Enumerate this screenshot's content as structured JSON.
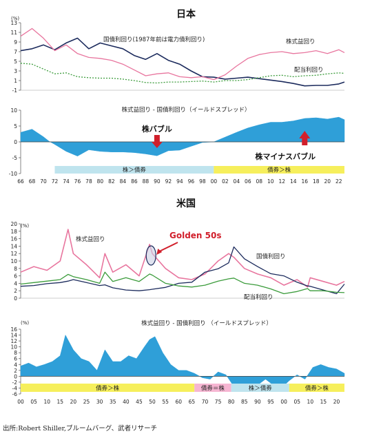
{
  "source_note": "出所:Robert Shiller,ブルームバーグ、武者リサーチ",
  "chart_data": [
    {
      "id": "japan_top",
      "type": "line",
      "title": "日本",
      "unit_label": "(%)",
      "ylim": [
        -1,
        13
      ],
      "yticks": [
        -1,
        1,
        3,
        5,
        7,
        9,
        11,
        13
      ],
      "x": [
        1966,
        1968,
        1970,
        1972,
        1974,
        1976,
        1978,
        1980,
        1982,
        1984,
        1986,
        1988,
        1990,
        1992,
        1994,
        1996,
        1998,
        2000,
        2002,
        2004,
        2006,
        2008,
        2010,
        2012,
        2014,
        2016,
        2018,
        2020,
        2022,
        2023
      ],
      "series": [
        {
          "name": "国債利回り(1987年前は電力債利回り)",
          "color": "#1b2a5c",
          "dash": "",
          "values": [
            7.2,
            7.6,
            8.4,
            7.4,
            8.8,
            9.8,
            7.6,
            8.8,
            8.2,
            7.6,
            6.2,
            5.4,
            6.6,
            5.2,
            4.4,
            3.0,
            1.8,
            1.7,
            1.3,
            1.5,
            1.7,
            1.4,
            1.1,
            0.8,
            0.4,
            -0.1,
            0.0,
            0.0,
            0.3,
            0.7
          ]
        },
        {
          "name": "株式益回り",
          "color": "#e8759e",
          "dash": "",
          "values": [
            10.2,
            11.8,
            9.8,
            7.2,
            8.4,
            6.6,
            5.8,
            5.6,
            5.2,
            4.4,
            3.2,
            2.0,
            2.4,
            2.6,
            1.8,
            1.6,
            1.8,
            1.2,
            2.2,
            4.0,
            5.6,
            6.4,
            6.8,
            7.0,
            6.6,
            6.8,
            7.2,
            6.6,
            7.4,
            6.8
          ]
        },
        {
          "name": "配当利回り",
          "color": "#3a9b3a",
          "dash": "2,2",
          "values": [
            4.6,
            4.4,
            3.4,
            2.4,
            2.6,
            1.8,
            1.6,
            1.5,
            1.5,
            1.3,
            1.0,
            0.6,
            0.5,
            0.7,
            0.7,
            0.8,
            0.9,
            0.7,
            1.0,
            1.0,
            1.2,
            1.6,
            2.0,
            2.1,
            1.8,
            2.0,
            2.1,
            2.4,
            2.6,
            2.5
          ]
        }
      ]
    },
    {
      "id": "japan_spread",
      "type": "area",
      "title": "株式益回り - 国債利回り（イールドスプレッド）",
      "ylim": [
        -10,
        10
      ],
      "yticks": [
        -10,
        -5,
        0,
        5,
        10
      ],
      "xlabels": [
        "66",
        "68",
        "70",
        "72",
        "74",
        "76",
        "78",
        "80",
        "82",
        "84",
        "86",
        "88",
        "90",
        "92",
        "94",
        "96",
        "98",
        "00",
        "02",
        "04",
        "06",
        "08",
        "10",
        "12",
        "14",
        "16",
        "18",
        "20",
        "22"
      ],
      "x": [
        1966,
        1968,
        1970,
        1971,
        1972,
        1974,
        1976,
        1978,
        1980,
        1982,
        1984,
        1986,
        1988,
        1990,
        1992,
        1994,
        1996,
        1998,
        2000,
        2002,
        2004,
        2006,
        2008,
        2010,
        2012,
        2014,
        2016,
        2018,
        2020,
        2022,
        2023
      ],
      "values": [
        3.0,
        4.0,
        1.6,
        0.2,
        -0.8,
        -3.0,
        -4.5,
        -2.5,
        -3.0,
        -3.2,
        -3.2,
        -3.4,
        -3.8,
        -4.4,
        -2.8,
        -2.6,
        -1.4,
        -0.2,
        0.0,
        1.5,
        3.0,
        4.4,
        5.4,
        6.2,
        6.2,
        6.6,
        7.4,
        7.6,
        7.2,
        7.8,
        7.0
      ],
      "color": "#2f9fd8",
      "annotations": [
        {
          "text": "株バブル",
          "x": 1990,
          "arrow": "down"
        },
        {
          "text": "株マイナスバブル",
          "x": 2016,
          "arrow": "up"
        }
      ],
      "regimes": [
        {
          "label": "株＞債券",
          "from": 1972,
          "to": 2000,
          "color": "#bfe4ee"
        },
        {
          "label": "債券＞株",
          "from": 2000,
          "to": 2023,
          "color": "#f6ef5c"
        }
      ]
    },
    {
      "id": "us_top",
      "type": "line",
      "title": "米国",
      "unit_label": "(%)",
      "ylim": [
        0,
        20
      ],
      "yticks": [
        0,
        2,
        4,
        6,
        8,
        10,
        12,
        14,
        16,
        18,
        20
      ],
      "x": [
        1900,
        1905,
        1910,
        1915,
        1918,
        1920,
        1925,
        1930,
        1932,
        1935,
        1940,
        1945,
        1949,
        1950,
        1955,
        1960,
        1965,
        1970,
        1975,
        1979,
        1981,
        1985,
        1990,
        1995,
        2000,
        2005,
        2009,
        2010,
        2015,
        2020,
        2023
      ],
      "series": [
        {
          "name": "株式益回り",
          "color": "#e8759e",
          "dash": "",
          "values": [
            7.0,
            8.5,
            7.5,
            10.0,
            18.5,
            12.0,
            9.0,
            5.5,
            12.0,
            7.0,
            9.0,
            6.0,
            14.5,
            12.0,
            8.0,
            5.5,
            5.0,
            6.5,
            10.0,
            12.0,
            11.0,
            8.0,
            6.5,
            5.5,
            3.5,
            5.0,
            3.0,
            5.5,
            4.5,
            3.5,
            4.5
          ]
        },
        {
          "name": "国債利回り",
          "color": "#1b2a5c",
          "dash": "",
          "values": [
            3.2,
            3.4,
            3.9,
            4.2,
            4.6,
            5.0,
            4.2,
            3.4,
            3.6,
            2.8,
            2.2,
            2.0,
            2.3,
            2.4,
            2.9,
            4.0,
            4.3,
            7.0,
            7.9,
            9.5,
            13.8,
            10.6,
            8.5,
            6.6,
            6.0,
            4.3,
            3.3,
            3.2,
            2.2,
            1.2,
            3.8
          ]
        },
        {
          "name": "配当利回り",
          "color": "#3a9b3a",
          "dash": "",
          "values": [
            3.8,
            4.2,
            4.6,
            5.0,
            6.4,
            5.8,
            5.0,
            4.0,
            7.0,
            4.5,
            5.5,
            4.5,
            6.5,
            6.2,
            4.0,
            3.3,
            3.0,
            3.5,
            4.6,
            5.2,
            5.4,
            4.0,
            3.5,
            2.5,
            1.2,
            1.8,
            2.6,
            2.0,
            2.0,
            1.6,
            1.5
          ]
        }
      ],
      "annotations": [
        {
          "text": "Golden 50s",
          "x": 1949,
          "color": "#d11f2b"
        }
      ]
    },
    {
      "id": "us_spread",
      "type": "area",
      "title": "株式益回り - 国債利回り （イールドスプレッド）",
      "unit_label": "(%)",
      "ylim": [
        -6,
        16
      ],
      "yticks": [
        -6,
        -4,
        -2,
        0,
        2,
        4,
        6,
        8,
        10,
        12,
        14,
        16
      ],
      "xlabels": [
        "00",
        "05",
        "10",
        "15",
        "20",
        "25",
        "30",
        "35",
        "40",
        "45",
        "50",
        "55",
        "60",
        "65",
        "70",
        "75",
        "80",
        "85",
        "90",
        "95",
        "00",
        "05",
        "10",
        "15",
        "20"
      ],
      "x": [
        1900,
        1903,
        1906,
        1909,
        1912,
        1915,
        1917,
        1920,
        1923,
        1926,
        1929,
        1932,
        1935,
        1938,
        1941,
        1944,
        1947,
        1949,
        1951,
        1954,
        1957,
        1960,
        1963,
        1966,
        1969,
        1972,
        1975,
        1978,
        1981,
        1984,
        1987,
        1990,
        1993,
        1996,
        1999,
        2002,
        2005,
        2008,
        2011,
        2014,
        2017,
        2020,
        2023
      ],
      "values": [
        3.5,
        4.5,
        3.2,
        4.0,
        5.0,
        7.0,
        14.0,
        9.0,
        6.0,
        5.0,
        2.0,
        9.0,
        5.0,
        5.0,
        7.0,
        6.0,
        10.0,
        12.5,
        13.5,
        8.0,
        4.0,
        2.0,
        2.0,
        1.0,
        -0.5,
        -1.0,
        1.5,
        0.5,
        -3.5,
        -3.8,
        -3.0,
        -3.0,
        -1.0,
        -3.0,
        -4.0,
        -1.5,
        0.5,
        -1.0,
        3.0,
        4.0,
        3.0,
        2.5,
        1.0
      ],
      "color": "#2f9fd8",
      "regimes": [
        {
          "label": "債券＞株",
          "from": 1900,
          "to": 1966,
          "color": "#f6ef5c"
        },
        {
          "label": "債券＝株",
          "from": 1966,
          "to": 1980,
          "color": "#f6b6d2"
        },
        {
          "label": "株＞債券",
          "from": 1980,
          "to": 2002,
          "color": "#bfe4ee"
        },
        {
          "label": "債券＞株",
          "from": 2002,
          "to": 2023,
          "color": "#f6ef5c"
        }
      ]
    }
  ]
}
